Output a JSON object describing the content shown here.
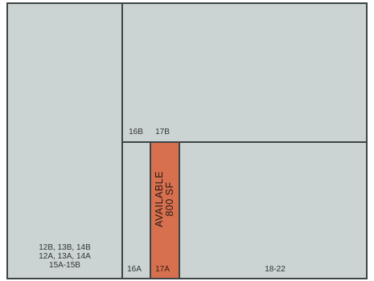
{
  "units": {
    "left_block": {
      "label_lines": [
        "12B, 13B, 14B",
        "12A, 13A, 14A",
        "15A-15B"
      ]
    },
    "u16b": {
      "label": "16B"
    },
    "u17b": {
      "label": "17B"
    },
    "u16a": {
      "label": "16A"
    },
    "u17a": {
      "label": "17A"
    },
    "u18_22": {
      "label": "18-22"
    }
  },
  "available": {
    "status": "AVAILABLE",
    "area": "800 SF"
  },
  "colors": {
    "unit_fill": "#ccd3d3",
    "available_fill": "#d6704f",
    "outline": "#3c4444"
  }
}
